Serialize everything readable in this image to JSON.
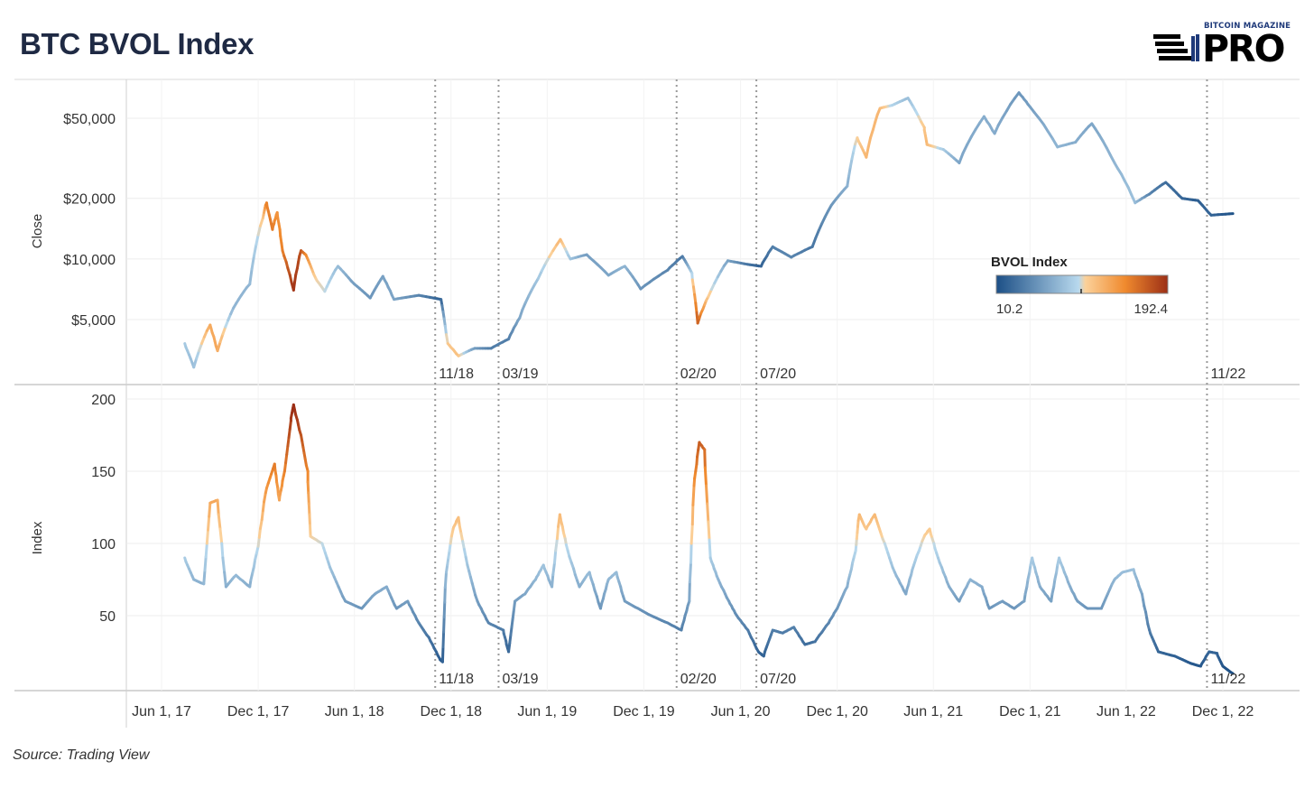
{
  "title": "BTC BVOL Index",
  "logo": {
    "top_text": "BITCOIN MAGAZINE",
    "main_text": "PRO"
  },
  "source": "Source: Trading View",
  "colors": {
    "low": "#1c4f86",
    "mid_blue": "#8fc0e0",
    "mid_orange": "#f6a54b",
    "high": "#a3341b"
  },
  "chart_data": [
    {
      "type": "line",
      "name": "close-panel",
      "ylabel": "Close",
      "yscale": "log",
      "yticks": [
        5000,
        10000,
        20000,
        50000
      ],
      "ytick_labels": [
        "$5,000",
        "$10,000",
        "$20,000",
        "$50,000"
      ],
      "ylim": [
        2700,
        70000
      ],
      "xlim": [
        "2017-05-01",
        "2023-02-15"
      ],
      "color_by": "BVOL Index",
      "points": [
        [
          "2017-07-15",
          3800,
          88
        ],
        [
          "2017-08-01",
          2900,
          80
        ],
        [
          "2017-09-01",
          4700,
          128
        ],
        [
          "2017-09-15",
          3500,
          130
        ],
        [
          "2017-10-15",
          5700,
          75
        ],
        [
          "2017-11-15",
          7500,
          75
        ],
        [
          "2017-12-10",
          16000,
          110
        ],
        [
          "2017-12-17",
          19000,
          150
        ],
        [
          "2017-12-28",
          14000,
          155
        ],
        [
          "2018-01-06",
          17000,
          140
        ],
        [
          "2018-01-16",
          11000,
          150
        ],
        [
          "2018-02-06",
          7000,
          190
        ],
        [
          "2018-02-20",
          11000,
          175
        ],
        [
          "2018-03-01",
          10500,
          150
        ],
        [
          "2018-03-20",
          8000,
          105
        ],
        [
          "2018-04-06",
          6900,
          100
        ],
        [
          "2018-05-01",
          9200,
          80
        ],
        [
          "2018-06-01",
          7500,
          60
        ],
        [
          "2018-07-01",
          6400,
          55
        ],
        [
          "2018-07-25",
          8200,
          62
        ],
        [
          "2018-08-15",
          6300,
          65
        ],
        [
          "2018-10-01",
          6600,
          45
        ],
        [
          "2018-11-12",
          6300,
          22
        ],
        [
          "2018-11-25",
          3800,
          110
        ],
        [
          "2018-12-15",
          3300,
          115
        ],
        [
          "2019-01-15",
          3600,
          60
        ],
        [
          "2019-02-15",
          3600,
          40
        ],
        [
          "2019-03-20",
          4000,
          40
        ],
        [
          "2019-04-10",
          5100,
          65
        ],
        [
          "2019-05-15",
          8000,
          85
        ],
        [
          "2019-06-26",
          12500,
          120
        ],
        [
          "2019-07-15",
          10000,
          85
        ],
        [
          "2019-08-15",
          10500,
          60
        ],
        [
          "2019-09-25",
          8300,
          65
        ],
        [
          "2019-10-26",
          9200,
          75
        ],
        [
          "2019-11-25",
          7100,
          55
        ],
        [
          "2020-01-15",
          8800,
          45
        ],
        [
          "2020-02-12",
          10300,
          35
        ],
        [
          "2020-03-01",
          8500,
          90
        ],
        [
          "2020-03-12",
          4800,
          170
        ],
        [
          "2020-04-01",
          6500,
          110
        ],
        [
          "2020-05-08",
          9800,
          65
        ],
        [
          "2020-06-15",
          9400,
          35
        ],
        [
          "2020-07-10",
          9200,
          22
        ],
        [
          "2020-08-01",
          11500,
          40
        ],
        [
          "2020-09-05",
          10200,
          45
        ],
        [
          "2020-10-15",
          11500,
          35
        ],
        [
          "2020-11-20",
          18500,
          55
        ],
        [
          "2020-12-20",
          23000,
          70
        ],
        [
          "2021-01-08",
          40000,
          105
        ],
        [
          "2021-01-25",
          32000,
          120
        ],
        [
          "2021-02-20",
          56000,
          120
        ],
        [
          "2021-03-15",
          58000,
          95
        ],
        [
          "2021-04-14",
          63000,
          80
        ],
        [
          "2021-05-15",
          45000,
          110
        ],
        [
          "2021-05-20",
          37000,
          120
        ],
        [
          "2021-06-20",
          35000,
          90
        ],
        [
          "2021-07-20",
          30000,
          65
        ],
        [
          "2021-09-05",
          51000,
          70
        ],
        [
          "2021-09-25",
          42000,
          70
        ],
        [
          "2021-11-10",
          67000,
          55
        ],
        [
          "2021-12-01",
          57000,
          60
        ],
        [
          "2022-01-22",
          36000,
          75
        ],
        [
          "2022-02-25",
          38000,
          70
        ],
        [
          "2022-03-28",
          47000,
          65
        ],
        [
          "2022-05-10",
          30000,
          75
        ],
        [
          "2022-06-18",
          19000,
          82
        ],
        [
          "2022-07-15",
          21000,
          45
        ],
        [
          "2022-08-15",
          24000,
          30
        ],
        [
          "2022-09-15",
          20000,
          25
        ],
        [
          "2022-10-15",
          19500,
          20
        ],
        [
          "2022-11-09",
          16500,
          25
        ],
        [
          "2022-12-20",
          16800,
          12
        ]
      ]
    },
    {
      "type": "line",
      "name": "index-panel",
      "ylabel": "Index",
      "yticks": [
        50,
        100,
        150,
        200
      ],
      "ylim": [
        0,
        205
      ],
      "xlim": [
        "2017-05-01",
        "2023-02-15"
      ],
      "points": [
        [
          "2017-07-15",
          90
        ],
        [
          "2017-08-01",
          75
        ],
        [
          "2017-08-20",
          72
        ],
        [
          "2017-09-01",
          128
        ],
        [
          "2017-09-15",
          130
        ],
        [
          "2017-10-01",
          70
        ],
        [
          "2017-10-20",
          78
        ],
        [
          "2017-11-15",
          70
        ],
        [
          "2017-12-01",
          98
        ],
        [
          "2017-12-15",
          135
        ],
        [
          "2018-01-01",
          155
        ],
        [
          "2018-01-10",
          130
        ],
        [
          "2018-01-20",
          150
        ],
        [
          "2018-02-01",
          185
        ],
        [
          "2018-02-06",
          196
        ],
        [
          "2018-02-20",
          175
        ],
        [
          "2018-03-05",
          150
        ],
        [
          "2018-03-10",
          105
        ],
        [
          "2018-04-01",
          100
        ],
        [
          "2018-04-20",
          80
        ],
        [
          "2018-05-15",
          60
        ],
        [
          "2018-06-15",
          55
        ],
        [
          "2018-07-10",
          65
        ],
        [
          "2018-08-01",
          70
        ],
        [
          "2018-08-20",
          55
        ],
        [
          "2018-09-10",
          60
        ],
        [
          "2018-10-01",
          45
        ],
        [
          "2018-10-20",
          35
        ],
        [
          "2018-11-10",
          20
        ],
        [
          "2018-11-15",
          18
        ],
        [
          "2018-11-22",
          80
        ],
        [
          "2018-12-05",
          110
        ],
        [
          "2018-12-15",
          118
        ],
        [
          "2019-01-01",
          85
        ],
        [
          "2019-01-20",
          60
        ],
        [
          "2019-02-10",
          45
        ],
        [
          "2019-03-10",
          40
        ],
        [
          "2019-03-20",
          25
        ],
        [
          "2019-04-01",
          60
        ],
        [
          "2019-04-20",
          65
        ],
        [
          "2019-05-10",
          75
        ],
        [
          "2019-05-25",
          85
        ],
        [
          "2019-06-10",
          70
        ],
        [
          "2019-06-25",
          120
        ],
        [
          "2019-07-10",
          95
        ],
        [
          "2019-08-01",
          70
        ],
        [
          "2019-08-20",
          80
        ],
        [
          "2019-09-10",
          55
        ],
        [
          "2019-09-25",
          75
        ],
        [
          "2019-10-10",
          80
        ],
        [
          "2019-10-26",
          60
        ],
        [
          "2019-11-20",
          55
        ],
        [
          "2019-12-15",
          50
        ],
        [
          "2020-01-15",
          45
        ],
        [
          "2020-02-10",
          40
        ],
        [
          "2020-02-25",
          60
        ],
        [
          "2020-03-05",
          140
        ],
        [
          "2020-03-15",
          170
        ],
        [
          "2020-03-25",
          165
        ],
        [
          "2020-04-05",
          90
        ],
        [
          "2020-04-20",
          75
        ],
        [
          "2020-05-10",
          60
        ],
        [
          "2020-05-25",
          50
        ],
        [
          "2020-06-15",
          40
        ],
        [
          "2020-07-05",
          25
        ],
        [
          "2020-07-15",
          22
        ],
        [
          "2020-08-01",
          40
        ],
        [
          "2020-08-20",
          38
        ],
        [
          "2020-09-10",
          42
        ],
        [
          "2020-10-01",
          30
        ],
        [
          "2020-10-20",
          32
        ],
        [
          "2020-11-15",
          45
        ],
        [
          "2020-12-01",
          55
        ],
        [
          "2020-12-20",
          70
        ],
        [
          "2021-01-05",
          95
        ],
        [
          "2021-01-12",
          120
        ],
        [
          "2021-01-25",
          110
        ],
        [
          "2021-02-10",
          120
        ],
        [
          "2021-03-01",
          100
        ],
        [
          "2021-03-20",
          80
        ],
        [
          "2021-04-10",
          65
        ],
        [
          "2021-04-25",
          85
        ],
        [
          "2021-05-15",
          105
        ],
        [
          "2021-05-25",
          110
        ],
        [
          "2021-06-10",
          90
        ],
        [
          "2021-07-01",
          70
        ],
        [
          "2021-07-20",
          60
        ],
        [
          "2021-08-10",
          75
        ],
        [
          "2021-09-01",
          70
        ],
        [
          "2021-09-15",
          55
        ],
        [
          "2021-10-10",
          60
        ],
        [
          "2021-11-01",
          55
        ],
        [
          "2021-11-20",
          60
        ],
        [
          "2021-12-05",
          90
        ],
        [
          "2021-12-20",
          70
        ],
        [
          "2022-01-10",
          60
        ],
        [
          "2022-01-25",
          90
        ],
        [
          "2022-02-15",
          70
        ],
        [
          "2022-03-01",
          60
        ],
        [
          "2022-03-20",
          55
        ],
        [
          "2022-04-15",
          55
        ],
        [
          "2022-05-10",
          75
        ],
        [
          "2022-05-25",
          80
        ],
        [
          "2022-06-15",
          82
        ],
        [
          "2022-07-01",
          65
        ],
        [
          "2022-07-15",
          40
        ],
        [
          "2022-08-01",
          25
        ],
        [
          "2022-09-01",
          22
        ],
        [
          "2022-10-01",
          17
        ],
        [
          "2022-10-20",
          15
        ],
        [
          "2022-11-05",
          25
        ],
        [
          "2022-11-20",
          24
        ],
        [
          "2022-12-01",
          15
        ],
        [
          "2022-12-20",
          10
        ]
      ]
    }
  ],
  "annotations": [
    {
      "date": "2018-11-01",
      "label": "11/18"
    },
    {
      "date": "2019-03-01",
      "label": "03/19"
    },
    {
      "date": "2020-02-01",
      "label": "02/20"
    },
    {
      "date": "2020-07-01",
      "label": "07/20"
    },
    {
      "date": "2022-11-01",
      "label": "11/22"
    }
  ],
  "x_axis": {
    "ticks": [
      "2017-06-01",
      "2017-12-01",
      "2018-06-01",
      "2018-12-01",
      "2019-06-01",
      "2019-12-01",
      "2020-06-01",
      "2020-12-01",
      "2021-06-01",
      "2021-12-01",
      "2022-06-01",
      "2022-12-01"
    ],
    "labels": [
      "Jun 1, 17",
      "Dec 1, 17",
      "Jun 1, 18",
      "Dec 1, 18",
      "Jun 1, 19",
      "Dec 1, 19",
      "Jun 1, 20",
      "Dec 1, 20",
      "Jun 1, 21",
      "Dec 1, 21",
      "Jun 1, 22",
      "Dec 1, 22"
    ]
  },
  "legend": {
    "title": "BVOL Index",
    "min_label": "10.2",
    "max_label": "192.4",
    "min": 10.2,
    "max": 192.4,
    "placement": "right"
  }
}
